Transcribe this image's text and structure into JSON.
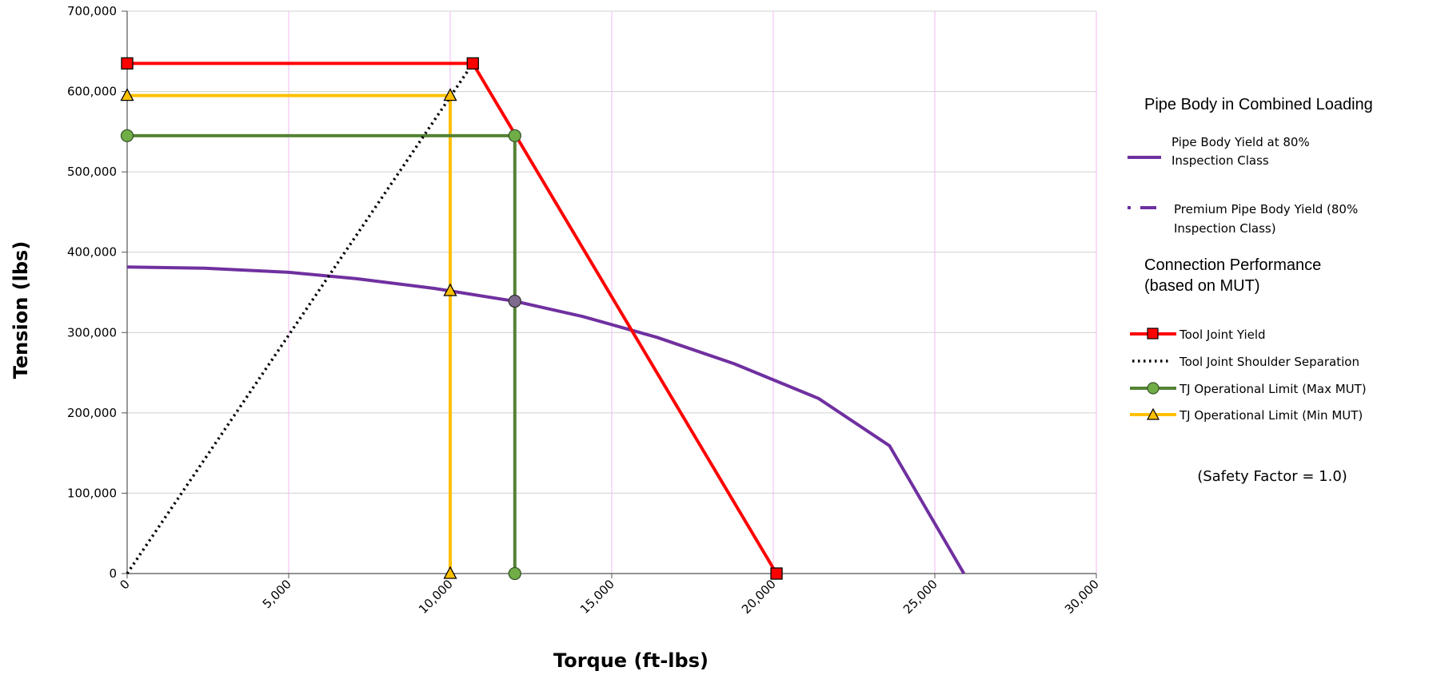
{
  "chart_data": {
    "type": "line",
    "xlabel": "Torque  (ft-lbs)",
    "ylabel": "Tension  (lbs)",
    "xlim": [
      0,
      30000
    ],
    "ylim": [
      0,
      700000
    ],
    "x_ticks": [
      "0",
      "5,000",
      "10,000",
      "15,000",
      "20,000",
      "25,000",
      "30,000"
    ],
    "y_ticks": [
      "0",
      "100,000",
      "200,000",
      "300,000",
      "400,000",
      "500,000",
      "600,000",
      "700,000"
    ],
    "grid": "vertical lines pink, horizontal lines gray",
    "legend_position": "right",
    "legend": {
      "section1_title": "Pipe Body in Combined Loading",
      "section2_title_line1": "Connection Performance",
      "section2_title_line2": "(based on  MUT)",
      "items": [
        {
          "line1": "Pipe Body Yield at 80%",
          "line2": "Inspection Class"
        },
        {
          "line1": "Premium Pipe Body Yield (80%",
          "line2": "Inspection Class)"
        },
        {
          "line1": "Tool Joint Yield"
        },
        {
          "line1": "Tool Joint Shoulder Separation"
        },
        {
          "line1": "TJ Operational Limit (Max MUT)"
        },
        {
          "line1": "TJ Operational Limit (Min MUT)"
        }
      ],
      "note": "(Safety Factor = 1.0)"
    },
    "series": [
      {
        "name": "Pipe Body Yield at 80% Inspection Class",
        "color": "#7030a0",
        "marker": "none",
        "x": [
          0,
          2400,
          5000,
          7100,
          9500,
          12000,
          14100,
          16400,
          18800,
          21400,
          23600,
          25900
        ],
        "y": [
          381500,
          380000,
          375000,
          367000,
          355000,
          339000,
          320000,
          294000,
          261000,
          218000,
          159000,
          0
        ]
      },
      {
        "name": "Tool Joint Yield",
        "color": "#ff0000",
        "marker": "square",
        "x": [
          0,
          10700,
          20100
        ],
        "y": [
          635000,
          635000,
          0
        ]
      },
      {
        "name": "Tool Joint Shoulder Separation",
        "color": "#000000",
        "marker": "none",
        "dash": "dotted",
        "x": [
          0,
          10700
        ],
        "y": [
          0,
          635000
        ]
      },
      {
        "name": "TJ Operational Limit (Max MUT)",
        "color": "#548235",
        "marker": "circle",
        "x": [
          0,
          12000,
          12000
        ],
        "y": [
          545000,
          545000,
          0
        ]
      },
      {
        "name": "TJ Operational Limit (Min MUT)",
        "color": "#ffc000",
        "marker": "triangle",
        "x": [
          0,
          10000,
          10000
        ],
        "y": [
          595000,
          595000,
          0
        ]
      }
    ],
    "extra_markers": [
      {
        "series": "TJ Operational Limit (Min MUT)",
        "x": 10000,
        "y": 352000,
        "marker": "triangle",
        "color": "#ffc000"
      },
      {
        "series": "TJ Operational Limit (Max MUT)",
        "x": 12000,
        "y": 339000,
        "marker": "circle",
        "color": "#7f6a8f"
      }
    ]
  }
}
